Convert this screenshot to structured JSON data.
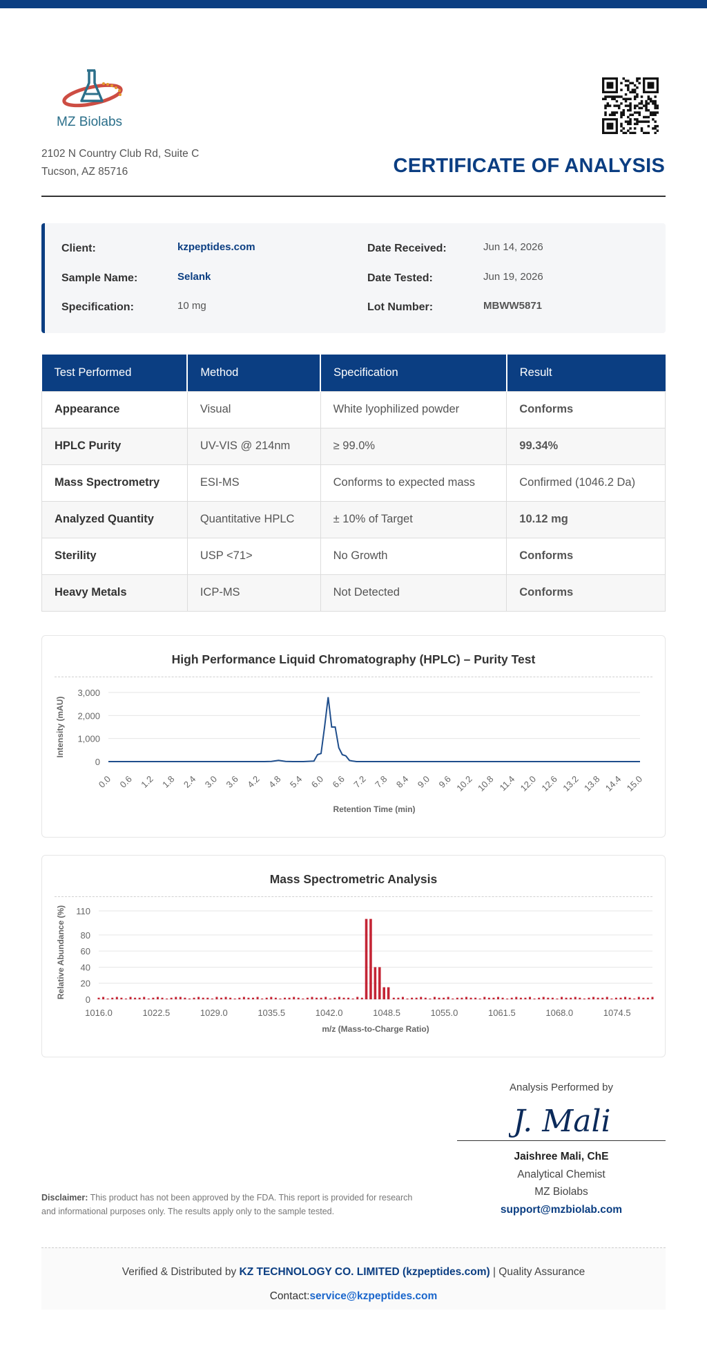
{
  "brand": {
    "logo_text": "MZ Biolabs",
    "address_line1": "2102 N Country Club Rd, Suite C",
    "address_line2": "Tucson, AZ 85716",
    "accent_color": "#0b3e82"
  },
  "document": {
    "title": "CERTIFICATE OF ANALYSIS"
  },
  "info": {
    "client_label": "Client:",
    "client_value": "kzpeptides.com",
    "sample_label": "Sample Name:",
    "sample_value": "Selank",
    "spec_label": "Specification:",
    "spec_value": "10 mg",
    "received_label": "Date Received:",
    "received_value": "Jun 14, 2026",
    "tested_label": "Date Tested:",
    "tested_value": "Jun 19, 2026",
    "lot_label": "Lot Number:",
    "lot_value": "MBWW5871"
  },
  "tests": {
    "headers": [
      "Test Performed",
      "Method",
      "Specification",
      "Result"
    ],
    "rows": [
      {
        "test": "Appearance",
        "method": "Visual",
        "spec": "White lyophilized powder",
        "result": "Conforms",
        "style": "green"
      },
      {
        "test": "HPLC Purity",
        "method": "UV-VIS @ 214nm",
        "spec": "≥ 99.0%",
        "result": "99.34%",
        "style": "green"
      },
      {
        "test": "Mass Spectrometry",
        "method": "ESI-MS",
        "spec": "Conforms to expected mass",
        "result": "Confirmed (1046.2 Da)",
        "style": "plain"
      },
      {
        "test": "Analyzed Quantity",
        "method": "Quantitative HPLC",
        "spec": "± 10% of Target",
        "result": "10.12 mg",
        "style": "bold"
      },
      {
        "test": "Sterility",
        "method": "USP <71>",
        "spec": "No Growth",
        "result": "Conforms",
        "style": "green"
      },
      {
        "test": "Heavy Metals",
        "method": "ICP-MS",
        "spec": "Not Detected",
        "result": "Conforms",
        "style": "green"
      }
    ]
  },
  "chart_data": [
    {
      "type": "line",
      "title": "High Performance Liquid Chromatography (HPLC) – Purity Test",
      "xlabel": "Retention Time (min)",
      "ylabel": "Intensity (mAU)",
      "xlim": [
        0,
        15
      ],
      "ylim": [
        0,
        3000
      ],
      "x_ticks": [
        "0.0",
        "0.6",
        "1.2",
        "1.8",
        "2.4",
        "3.0",
        "3.6",
        "4.2",
        "4.8",
        "5.4",
        "6.0",
        "6.6",
        "7.2",
        "7.8",
        "8.4",
        "9.0",
        "9.6",
        "10.2",
        "10.8",
        "11.4",
        "12.0",
        "12.6",
        "13.2",
        "13.8",
        "14.4",
        "15.0"
      ],
      "y_ticks": [
        "0",
        "1,000",
        "2,000",
        "3,000"
      ],
      "grid": true,
      "color": "#1f4e8c",
      "series": [
        {
          "x": [
            0,
            3.0,
            4.4,
            4.6,
            4.7,
            4.8,
            4.9,
            5.0,
            5.2,
            5.5,
            5.8,
            5.9,
            6.0,
            6.1,
            6.2,
            6.3,
            6.4,
            6.5,
            6.6,
            6.7,
            6.8,
            6.9,
            7.0,
            7.2,
            7.6,
            10.0,
            15.0
          ],
          "y": [
            0,
            0,
            0,
            10,
            30,
            50,
            30,
            10,
            0,
            0,
            20,
            300,
            350,
            1500,
            2800,
            1500,
            1500,
            600,
            300,
            250,
            50,
            20,
            0,
            0,
            0,
            0,
            0
          ]
        }
      ]
    },
    {
      "type": "bar",
      "title": "Mass Spectrometric Analysis",
      "xlabel": "m/z (Mass-to-Charge Ratio)",
      "ylabel": "Relative Abundance (%)",
      "xlim": [
        1016,
        1078.5
      ],
      "ylim": [
        0,
        110
      ],
      "x_ticks": [
        "1016.0",
        "1022.5",
        "1029.0",
        "1035.5",
        "1042.0",
        "1048.5",
        "1055.0",
        "1061.5",
        "1068.0",
        "1074.5"
      ],
      "y_ticks": [
        "0",
        "20",
        "40",
        "60",
        "80",
        "110"
      ],
      "grid": true,
      "color": "#c42535",
      "peaks": [
        {
          "mz": 1046.2,
          "abundance": 100
        },
        {
          "mz": 1046.7,
          "abundance": 100
        },
        {
          "mz": 1047.2,
          "abundance": 40
        },
        {
          "mz": 1047.7,
          "abundance": 40
        },
        {
          "mz": 1048.2,
          "abundance": 15
        },
        {
          "mz": 1048.7,
          "abundance": 15
        }
      ],
      "baseline": [
        2,
        3,
        1,
        2,
        3,
        2,
        1,
        3,
        2,
        2,
        3,
        1,
        2,
        3,
        2,
        1,
        2,
        3,
        3,
        2,
        1,
        2,
        3,
        2,
        2,
        1,
        3,
        2,
        3,
        2,
        1,
        2,
        3,
        2,
        2,
        3,
        1,
        2,
        3,
        2,
        1,
        2,
        2,
        3,
        2,
        1,
        2,
        3,
        2,
        2,
        3,
        1,
        2,
        3,
        2,
        2,
        1,
        3,
        2,
        2,
        3,
        2,
        1,
        2,
        3,
        2,
        2,
        3,
        1,
        2,
        2,
        3,
        2,
        1,
        3,
        2,
        2,
        3,
        1,
        2,
        2,
        3,
        2,
        2,
        1,
        3,
        2,
        2,
        3,
        2,
        1,
        2,
        3,
        2,
        2,
        3,
        1,
        2,
        3,
        2,
        2,
        1,
        3,
        2,
        2,
        3,
        2,
        1,
        2,
        3,
        2,
        2,
        3,
        1,
        2,
        2,
        3,
        2,
        1,
        3,
        2,
        2,
        3
      ]
    }
  ],
  "signature": {
    "performed_by": "Analysis Performed by",
    "signature_text": "J. Mali",
    "name": "Jaishree Mali, ChE",
    "role": "Analytical Chemist",
    "organization": "MZ Biolabs",
    "email": "support@mzbiolab.com"
  },
  "disclaimer": {
    "label": "Disclaimer:",
    "text": "This product has not been approved by the FDA. This report is provided for research and informational purposes only. The results apply only to the sample tested."
  },
  "footer": {
    "verified_prefix": "Verified & Distributed by",
    "company": "KZ TECHNOLOGY CO. LIMITED (kzpeptides.com)",
    "verified_suffix": "| Quality Assurance",
    "contact_label": "Contact:",
    "contact_email": "service@kzpeptides.com"
  }
}
